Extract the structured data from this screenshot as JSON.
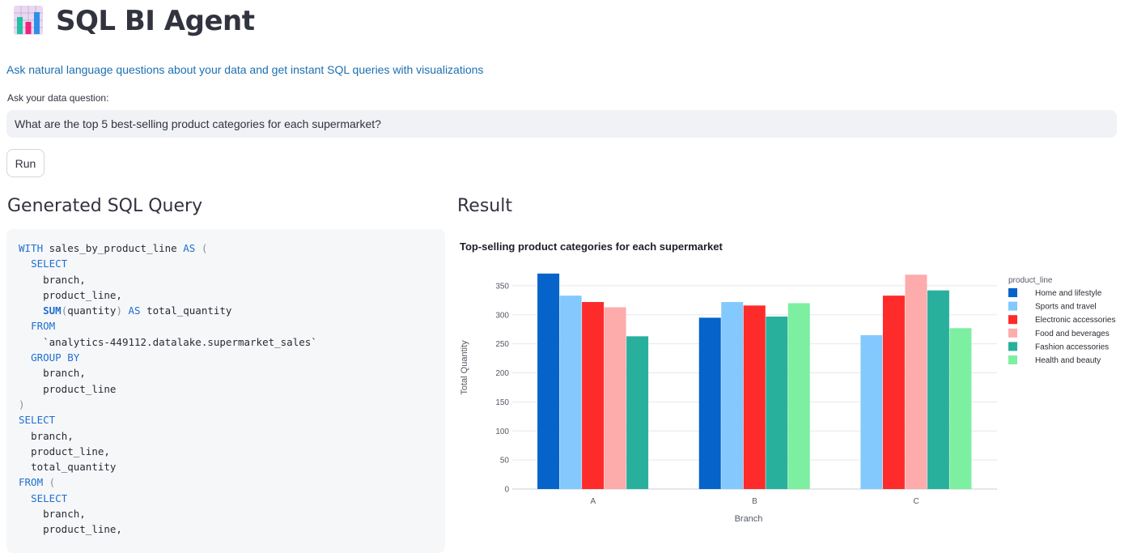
{
  "header": {
    "icon": "bar-chart-icon",
    "title": "SQL BI Agent",
    "subtitle": "Ask natural language questions about your data and get instant SQL queries with visualizations"
  },
  "question": {
    "label": "Ask your data question:",
    "value": "What are the top 5 best-selling product categories for each supermarket?"
  },
  "run_button": {
    "label": "Run"
  },
  "sql_section": {
    "title": "Generated SQL Query",
    "lines": [
      "WITH sales_by_product_line AS (",
      "  SELECT",
      "    branch,",
      "    product_line,",
      "    SUM(quantity) AS total_quantity",
      "  FROM",
      "    `analytics-449112.datalake.supermarket_sales`",
      "  GROUP BY",
      "    branch,",
      "    product_line",
      ")",
      "SELECT",
      "  branch,",
      "  product_line,",
      "  total_quantity",
      "FROM (",
      "  SELECT",
      "    branch,",
      "    product_line,"
    ]
  },
  "result_section": {
    "title": "Result"
  },
  "chart_data": {
    "type": "bar",
    "title": "Top-selling product categories for each supermarket",
    "xlabel": "Branch",
    "ylabel": "Total Quantity",
    "categories": [
      "A",
      "B",
      "C"
    ],
    "ylim": [
      0,
      375
    ],
    "yticks": [
      0,
      50,
      100,
      150,
      200,
      250,
      300,
      350
    ],
    "grid": true,
    "legend_title": "product_line",
    "legend_position": "right",
    "series": [
      {
        "name": "Home and lifestyle",
        "color": "#0563c9",
        "values": [
          371,
          295,
          null
        ]
      },
      {
        "name": "Sports and travel",
        "color": "#83c9fd",
        "values": [
          333,
          322,
          265
        ]
      },
      {
        "name": "Electronic accessories",
        "color": "#fe2b2b",
        "values": [
          322,
          316,
          333
        ]
      },
      {
        "name": "Food and beverages",
        "color": "#fdabab",
        "values": [
          313,
          null,
          369
        ]
      },
      {
        "name": "Fashion accessories",
        "color": "#29b09d",
        "values": [
          263,
          297,
          342
        ]
      },
      {
        "name": "Health and beauty",
        "color": "#7defa1",
        "values": [
          null,
          320,
          277
        ]
      }
    ]
  }
}
